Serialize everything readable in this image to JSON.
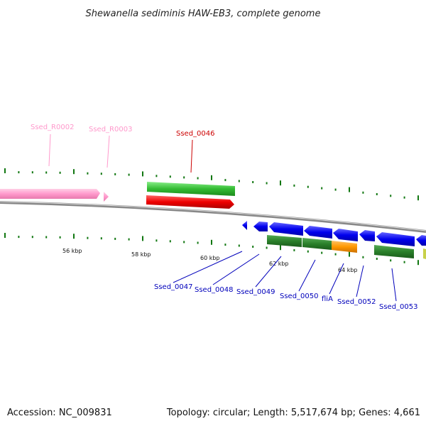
{
  "title": "Shewanella sediminis HAW-EB3, complete genome",
  "footer": {
    "accession": "Accession: NC_009831",
    "topology": "Topology: circular; Length: 5,517,674 bp; Genes: 4,661"
  },
  "scale_labels": [
    "56 kbp",
    "58 kbp",
    "60 kbp",
    "62 kbp",
    "64 kbp"
  ],
  "colors": {
    "rna_gene": "#ff99cc",
    "highlight_gene": "#cc0000",
    "cds_label": "#0000bb",
    "backbone": "#888888",
    "tick": "#117711"
  },
  "features": {
    "forward": [
      {
        "label": "Ssed_R0002",
        "color": "pink"
      },
      {
        "label": "Ssed_R0003",
        "color": "pink"
      },
      {
        "label": "Ssed_0046",
        "color": "red"
      }
    ],
    "reverse": [
      {
        "label": "Ssed_0047",
        "color": "blue"
      },
      {
        "label": "Ssed_0048",
        "color": "blue"
      },
      {
        "label": "Ssed_0049",
        "color": "blue"
      },
      {
        "label": "Ssed_0050",
        "color": "blue"
      },
      {
        "label": "fliA",
        "color": "blue"
      },
      {
        "label": "Ssed_0052",
        "color": "blue"
      },
      {
        "label": "Ssed_0053",
        "color": "blue"
      }
    ]
  }
}
